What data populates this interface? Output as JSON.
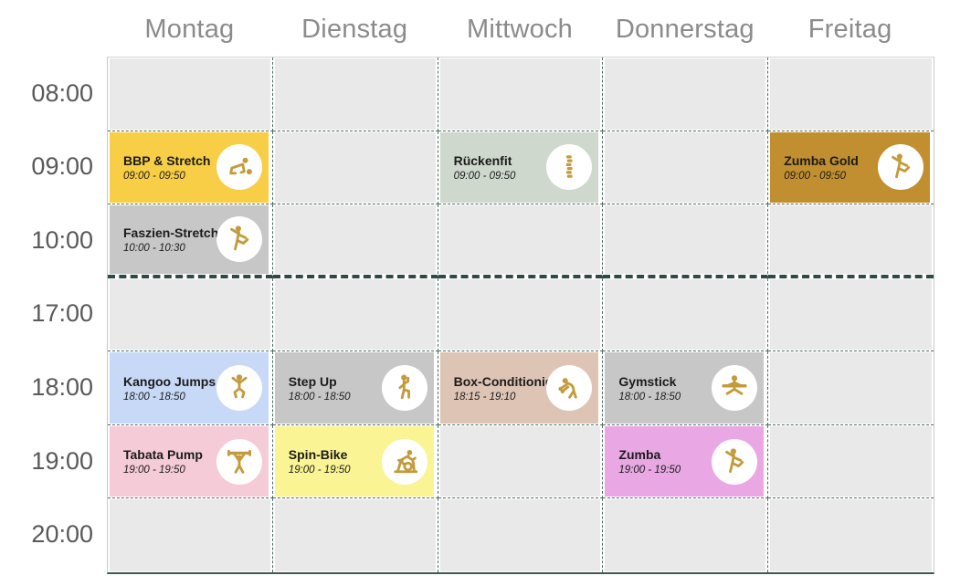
{
  "schedule": {
    "days": [
      "Montag",
      "Dienstag",
      "Mittwoch",
      "Donnerstag",
      "Freitag"
    ],
    "times": [
      "08:00",
      "09:00",
      "10:00",
      "17:00",
      "18:00",
      "19:00",
      "20:00"
    ],
    "events": [
      {
        "day": "Montag",
        "time": "09:00",
        "title": "BBP & Stretch",
        "time_range": "09:00 - 09:50",
        "color": "#F8CE46",
        "icon": "crawling-figure-icon"
      },
      {
        "day": "Montag",
        "time": "10:00",
        "title": "Faszien-Stretch",
        "time_range": "10:00 - 10:30",
        "color": "#C7C7C7",
        "icon": "dancing-figure-icon"
      },
      {
        "day": "Montag",
        "time": "18:00",
        "title": "Kangoo Jumps",
        "time_range": "18:00 - 18:50",
        "color": "#C7D9F6",
        "icon": "jumping-figure-icon"
      },
      {
        "day": "Montag",
        "time": "19:00",
        "title": "Tabata Pump",
        "time_range": "19:00 - 19:50",
        "color": "#F4CBD7",
        "icon": "weightlifter-icon"
      },
      {
        "day": "Dienstag",
        "time": "18:00",
        "title": "Step Up",
        "time_range": "18:00 - 18:50",
        "color": "#C7C7C7",
        "icon": "stepping-figure-icon"
      },
      {
        "day": "Dienstag",
        "time": "19:00",
        "title": "Spin-Bike",
        "time_range": "19:00 - 19:50",
        "color": "#FAF494",
        "icon": "spin-bike-icon"
      },
      {
        "day": "Mittwoch",
        "time": "09:00",
        "title": "Rückenfit",
        "time_range": "09:00 - 09:50",
        "color": "#CED8CD",
        "icon": "spine-icon"
      },
      {
        "day": "Mittwoch",
        "time": "18:00",
        "title": "Box-Conditionig",
        "time_range": "18:15 - 19:10",
        "color": "#DEC4B5",
        "icon": "boxing-figure-icon"
      },
      {
        "day": "Donnerstag",
        "time": "18:00",
        "title": "Gymstick",
        "time_range": "18:00 - 18:50",
        "color": "#C7C7C7",
        "icon": "gymstick-figure-icon"
      },
      {
        "day": "Donnerstag",
        "time": "19:00",
        "title": "Zumba",
        "time_range": "19:00 - 19:50",
        "color": "#E9A8E4",
        "icon": "dancing-figure-icon"
      },
      {
        "day": "Freitag",
        "time": "09:00",
        "title": "Zumba Gold",
        "time_range": "09:00 - 09:50",
        "color": "#C18F2F",
        "icon": "dancing-figure-icon"
      }
    ],
    "colors": {
      "cell_bg": "#E9E9E9",
      "grid_dashed_border": "#4D6B62",
      "section_separator": "#2D4A44",
      "icon_gold": "#C49B3C",
      "icon_circle_bg": "#FFFFFF",
      "day_header_text": "#8B8B8B",
      "time_label_text": "#595959",
      "event_text": "#1B1B1B"
    }
  }
}
